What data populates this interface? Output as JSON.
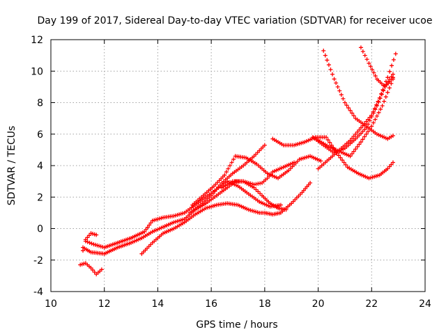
{
  "chart_data": {
    "type": "scatter",
    "title": "Day 199 of 2017, Sidereal Day-to-day VTEC variation (SDTVAR) for receiver ucoe",
    "xlabel": "GPS time / hours",
    "ylabel": "SDTVAR / TECUs",
    "xlim": [
      10,
      24
    ],
    "ylim": [
      -4,
      12
    ],
    "xticks": [
      "10",
      "12",
      "14",
      "16",
      "18",
      "20",
      "22",
      "24"
    ],
    "yticks": [
      "-4",
      "-2",
      "0",
      "2",
      "4",
      "6",
      "8",
      "10",
      "12"
    ],
    "grid": true,
    "marker": "+",
    "color": "#ff0000",
    "series": [
      {
        "x": [
          11.2,
          11.5,
          12.0,
          12.5,
          13.0,
          13.4,
          13.8,
          14.2,
          14.6,
          15.0,
          15.4,
          15.8,
          16.2,
          16.6,
          16.9,
          17.2,
          17.6,
          17.9,
          18.2,
          18.5,
          18.8
        ],
        "y": [
          -1.2,
          -1.5,
          -1.6,
          -1.2,
          -0.9,
          -0.6,
          -0.2,
          0.1,
          0.4,
          0.6,
          1.2,
          1.6,
          2.1,
          2.6,
          3.0,
          3.0,
          2.6,
          2.1,
          1.6,
          1.3,
          1.2
        ]
      },
      {
        "x": [
          11.3,
          11.6,
          12.0,
          12.5,
          13.0,
          13.5,
          13.8,
          14.2,
          14.6,
          15.0,
          15.4,
          15.8,
          16.2,
          16.6,
          17.0,
          17.4,
          17.8,
          18.2,
          18.6
        ],
        "y": [
          -0.8,
          -1.0,
          -1.2,
          -0.9,
          -0.6,
          -0.2,
          0.5,
          0.7,
          0.8,
          1.0,
          1.5,
          2.0,
          2.5,
          3.0,
          2.7,
          2.2,
          1.7,
          1.4,
          1.5
        ]
      },
      {
        "x": [
          13.4,
          13.8,
          14.2,
          14.6,
          15.0,
          15.4,
          15.8,
          16.2,
          16.6,
          17.0,
          17.4,
          17.8,
          18.0,
          18.3,
          18.6,
          19.0,
          19.4,
          19.7
        ],
        "y": [
          -1.6,
          -0.9,
          -0.3,
          0.0,
          0.4,
          0.9,
          1.3,
          1.5,
          1.6,
          1.5,
          1.2,
          1.0,
          1.0,
          0.9,
          1.0,
          1.6,
          2.3,
          2.9
        ]
      },
      {
        "x": [
          15.3,
          15.7,
          16.1,
          16.5,
          16.9,
          17.3,
          17.7,
          18.1,
          18.5,
          18.9,
          19.3,
          19.7,
          20.1
        ],
        "y": [
          1.5,
          2.1,
          2.7,
          3.4,
          4.6,
          4.5,
          4.1,
          3.5,
          3.2,
          3.7,
          4.4,
          4.6,
          4.3
        ]
      },
      {
        "x": [
          15.2,
          15.6,
          16.0,
          16.4,
          16.8,
          17.2,
          17.6,
          18.0
        ],
        "y": [
          1.0,
          1.5,
          2.1,
          2.9,
          3.5,
          4.0,
          4.6,
          5.3
        ]
      },
      {
        "x": [
          16.4,
          16.8,
          17.2,
          17.6,
          17.9,
          18.1,
          18.3,
          18.7,
          19.1
        ],
        "y": [
          2.6,
          3.0,
          3.0,
          2.8,
          2.9,
          3.2,
          3.6,
          3.9,
          4.2
        ]
      },
      {
        "x": [
          18.3,
          18.7,
          19.1,
          19.5,
          19.9,
          20.3,
          20.7,
          21.1,
          21.5,
          21.9,
          22.3,
          22.6,
          22.8
        ],
        "y": [
          5.7,
          5.3,
          5.3,
          5.5,
          5.8,
          5.8,
          4.8,
          3.9,
          3.5,
          3.2,
          3.4,
          3.8,
          4.2
        ]
      },
      {
        "x": [
          20.2,
          20.6,
          21.0,
          21.4,
          21.8,
          22.2,
          22.6,
          22.8
        ],
        "y": [
          11.3,
          9.5,
          8.0,
          7.0,
          6.5,
          6.0,
          5.7,
          5.9
        ]
      },
      {
        "x": [
          21.6,
          21.9,
          22.2,
          22.5,
          22.8
        ],
        "y": [
          11.5,
          10.5,
          9.5,
          9.0,
          9.6
        ]
      },
      {
        "x": [
          20.0,
          20.4,
          20.8,
          21.2,
          21.6,
          22.0,
          22.3,
          22.6,
          22.9
        ],
        "y": [
          3.8,
          4.4,
          5.0,
          5.6,
          6.4,
          7.2,
          8.3,
          9.6,
          11.1
        ]
      },
      {
        "x": [
          19.8,
          20.2,
          20.6,
          21.0,
          21.4,
          21.8,
          22.2,
          22.5,
          22.8
        ],
        "y": [
          5.8,
          5.3,
          4.8,
          5.1,
          5.7,
          6.4,
          7.8,
          9.0,
          9.8
        ]
      },
      {
        "x": [
          20.0,
          20.4,
          20.8,
          21.2,
          21.6,
          22.0,
          22.4,
          22.8
        ],
        "y": [
          5.6,
          5.2,
          4.9,
          4.6,
          5.5,
          6.5,
          7.8,
          9.5
        ]
      },
      {
        "x": [
          11.1,
          11.3,
          11.5,
          11.7,
          11.9
        ],
        "y": [
          -2.3,
          -2.2,
          -2.5,
          -2.9,
          -2.6
        ]
      },
      {
        "x": [
          11.2,
          11.3,
          11.5,
          11.7
        ],
        "y": [
          -1.4,
          -0.7,
          -0.3,
          -0.4
        ]
      }
    ]
  }
}
